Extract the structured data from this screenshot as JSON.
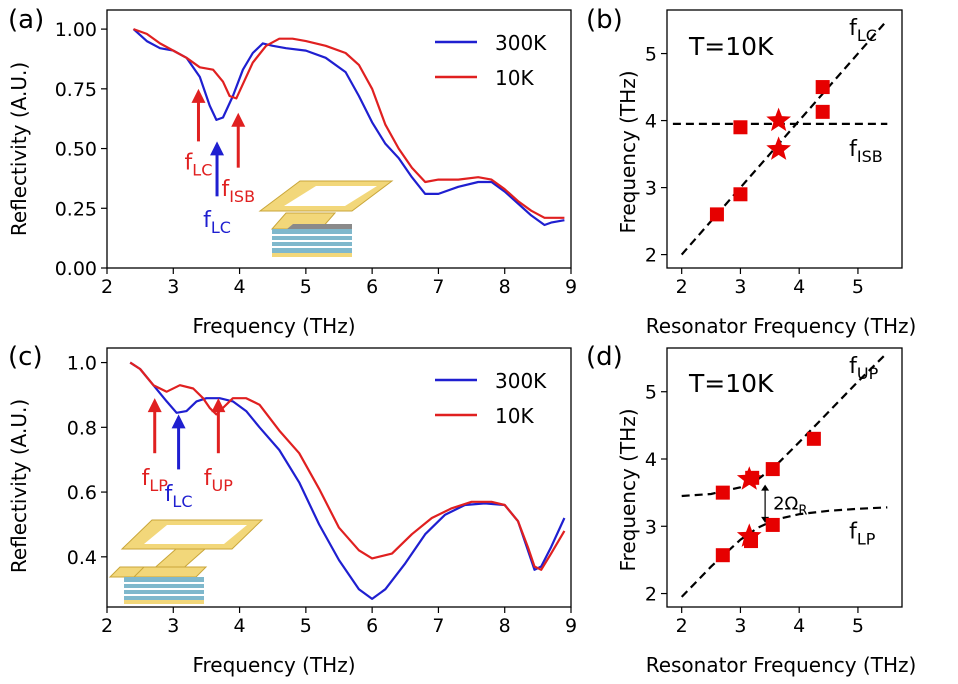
{
  "chart_data": [
    {
      "panel_label": "(a)",
      "type": "line",
      "xlabel": "Frequency (THz)",
      "ylabel": "Reflectivity (A.U.)",
      "xlim": [
        2,
        9
      ],
      "ylim": [
        0,
        1.08
      ],
      "xticks": [
        "2",
        "3",
        "4",
        "5",
        "6",
        "7",
        "8",
        "9"
      ],
      "yticks": [
        "0.00",
        "0.25",
        "0.50",
        "0.75",
        "1.00"
      ],
      "legend": "top-right",
      "series": [
        {
          "name": "300K",
          "color": "#1f1fd0",
          "points": [
            [
              2.4,
              1.0
            ],
            [
              2.6,
              0.95
            ],
            [
              2.8,
              0.92
            ],
            [
              3.0,
              0.91
            ],
            [
              3.2,
              0.88
            ],
            [
              3.4,
              0.8
            ],
            [
              3.55,
              0.68
            ],
            [
              3.65,
              0.62
            ],
            [
              3.75,
              0.63
            ],
            [
              3.9,
              0.72
            ],
            [
              4.05,
              0.83
            ],
            [
              4.2,
              0.9
            ],
            [
              4.35,
              0.94
            ],
            [
              4.5,
              0.93
            ],
            [
              4.7,
              0.92
            ],
            [
              5.0,
              0.91
            ],
            [
              5.3,
              0.88
            ],
            [
              5.6,
              0.82
            ],
            [
              5.8,
              0.72
            ],
            [
              6.0,
              0.61
            ],
            [
              6.2,
              0.52
            ],
            [
              6.4,
              0.46
            ],
            [
              6.6,
              0.38
            ],
            [
              6.8,
              0.31
            ],
            [
              7.0,
              0.31
            ],
            [
              7.3,
              0.34
            ],
            [
              7.6,
              0.36
            ],
            [
              7.8,
              0.36
            ],
            [
              8.0,
              0.32
            ],
            [
              8.2,
              0.27
            ],
            [
              8.4,
              0.22
            ],
            [
              8.6,
              0.18
            ],
            [
              8.7,
              0.19
            ],
            [
              8.9,
              0.2
            ]
          ]
        },
        {
          "name": "10K",
          "color": "#e02020",
          "points": [
            [
              2.4,
              1.0
            ],
            [
              2.6,
              0.98
            ],
            [
              2.8,
              0.94
            ],
            [
              3.0,
              0.91
            ],
            [
              3.2,
              0.88
            ],
            [
              3.4,
              0.84
            ],
            [
              3.6,
              0.83
            ],
            [
              3.75,
              0.78
            ],
            [
              3.85,
              0.72
            ],
            [
              3.95,
              0.71
            ],
            [
              4.05,
              0.77
            ],
            [
              4.2,
              0.86
            ],
            [
              4.4,
              0.93
            ],
            [
              4.6,
              0.96
            ],
            [
              4.8,
              0.96
            ],
            [
              5.0,
              0.95
            ],
            [
              5.3,
              0.93
            ],
            [
              5.6,
              0.9
            ],
            [
              5.8,
              0.85
            ],
            [
              6.0,
              0.75
            ],
            [
              6.2,
              0.6
            ],
            [
              6.4,
              0.5
            ],
            [
              6.6,
              0.42
            ],
            [
              6.8,
              0.36
            ],
            [
              7.0,
              0.37
            ],
            [
              7.3,
              0.37
            ],
            [
              7.6,
              0.38
            ],
            [
              7.8,
              0.37
            ],
            [
              8.0,
              0.33
            ],
            [
              8.2,
              0.28
            ],
            [
              8.4,
              0.24
            ],
            [
              8.6,
              0.21
            ],
            [
              8.8,
              0.21
            ],
            [
              8.9,
              0.21
            ]
          ]
        }
      ],
      "annotations": [
        {
          "main": "f",
          "sub": "LC",
          "color": "#e02020",
          "x": 3.38,
          "arrow_from": 0.53,
          "arrow_to": 0.75,
          "text_y": 0.47
        },
        {
          "main": "f",
          "sub": "LC",
          "color": "#1f1fd0",
          "x": 3.66,
          "arrow_from": 0.3,
          "arrow_to": 0.53,
          "text_y": 0.23
        },
        {
          "main": "f",
          "sub": "ISB",
          "color": "#e02020",
          "x": 3.98,
          "arrow_from": 0.42,
          "arrow_to": 0.65,
          "text_y": 0.36
        }
      ]
    },
    {
      "panel_label": "(b)",
      "type": "scatter",
      "xlabel": "Resonator Frequency (THz)",
      "ylabel": "Frequency (THz)",
      "xlim": [
        1.75,
        5.75
      ],
      "ylim": [
        1.8,
        5.65
      ],
      "xticks": [
        "2",
        "3",
        "4",
        "5"
      ],
      "yticks": [
        "2",
        "3",
        "4",
        "5"
      ],
      "inner_title": "T=10K",
      "squares": [
        [
          2.6,
          2.6
        ],
        [
          3.0,
          2.9
        ],
        [
          3.0,
          3.9
        ],
        [
          4.4,
          4.5
        ],
        [
          4.4,
          4.13
        ]
      ],
      "stars": [
        [
          3.65,
          3.57
        ],
        [
          3.65,
          4.0
        ]
      ],
      "lines": [
        {
          "points": [
            [
              2.0,
              2.0
            ],
            [
              5.5,
              5.5
            ]
          ]
        },
        {
          "points": [
            [
              1.85,
              3.95
            ],
            [
              5.5,
              3.95
            ]
          ]
        }
      ],
      "labels": [
        {
          "main": "f",
          "sub": "LC",
          "x": 4.85,
          "y": 5.28
        },
        {
          "main": "f",
          "sub": "ISB",
          "x": 4.85,
          "y": 3.47
        }
      ],
      "marker_color": "#e60000"
    },
    {
      "panel_label": "(c)",
      "type": "line",
      "xlabel": "Frequency (THz)",
      "ylabel": "Reflectivity (A.U.)",
      "xlim": [
        2,
        9
      ],
      "ylim": [
        0.245,
        1.045
      ],
      "xticks": [
        "2",
        "3",
        "4",
        "5",
        "6",
        "7",
        "8",
        "9"
      ],
      "yticks": [
        "0.4",
        "0.6",
        "0.8",
        "1.0"
      ],
      "legend": "top-right",
      "series": [
        {
          "name": "300K",
          "color": "#1f1fd0",
          "points": [
            [
              2.35,
              1.0
            ],
            [
              2.5,
              0.98
            ],
            [
              2.7,
              0.93
            ],
            [
              2.9,
              0.88
            ],
            [
              3.05,
              0.845
            ],
            [
              3.2,
              0.85
            ],
            [
              3.35,
              0.88
            ],
            [
              3.5,
              0.89
            ],
            [
              3.7,
              0.89
            ],
            [
              3.9,
              0.88
            ],
            [
              4.1,
              0.85
            ],
            [
              4.3,
              0.8
            ],
            [
              4.6,
              0.73
            ],
            [
              4.9,
              0.63
            ],
            [
              5.2,
              0.5
            ],
            [
              5.5,
              0.39
            ],
            [
              5.8,
              0.3
            ],
            [
              6.0,
              0.27
            ],
            [
              6.2,
              0.3
            ],
            [
              6.5,
              0.38
            ],
            [
              6.8,
              0.47
            ],
            [
              7.1,
              0.53
            ],
            [
              7.4,
              0.56
            ],
            [
              7.7,
              0.565
            ],
            [
              8.0,
              0.56
            ],
            [
              8.2,
              0.51
            ],
            [
              8.35,
              0.42
            ],
            [
              8.45,
              0.36
            ],
            [
              8.55,
              0.37
            ],
            [
              8.7,
              0.43
            ],
            [
              8.9,
              0.52
            ]
          ]
        },
        {
          "name": "10K",
          "color": "#e02020",
          "points": [
            [
              2.35,
              1.0
            ],
            [
              2.5,
              0.98
            ],
            [
              2.7,
              0.93
            ],
            [
              2.9,
              0.91
            ],
            [
              3.1,
              0.93
            ],
            [
              3.3,
              0.92
            ],
            [
              3.45,
              0.89
            ],
            [
              3.55,
              0.86
            ],
            [
              3.65,
              0.84
            ],
            [
              3.75,
              0.86
            ],
            [
              3.9,
              0.89
            ],
            [
              4.1,
              0.89
            ],
            [
              4.3,
              0.87
            ],
            [
              4.6,
              0.79
            ],
            [
              4.9,
              0.72
            ],
            [
              5.2,
              0.61
            ],
            [
              5.5,
              0.49
            ],
            [
              5.8,
              0.42
            ],
            [
              6.0,
              0.395
            ],
            [
              6.3,
              0.41
            ],
            [
              6.6,
              0.47
            ],
            [
              6.9,
              0.52
            ],
            [
              7.2,
              0.55
            ],
            [
              7.5,
              0.57
            ],
            [
              7.8,
              0.57
            ],
            [
              8.0,
              0.56
            ],
            [
              8.2,
              0.51
            ],
            [
              8.35,
              0.43
            ],
            [
              8.45,
              0.37
            ],
            [
              8.55,
              0.36
            ],
            [
              8.7,
              0.41
            ],
            [
              8.9,
              0.48
            ]
          ]
        }
      ],
      "annotations": [
        {
          "main": "f",
          "sub": "LP",
          "color": "#e02020",
          "x": 2.72,
          "arrow_from": 0.72,
          "arrow_to": 0.89,
          "text_y": 0.665
        },
        {
          "main": "f",
          "sub": "LC",
          "color": "#1f1fd0",
          "x": 3.08,
          "arrow_from": 0.67,
          "arrow_to": 0.84,
          "text_y": 0.615
        },
        {
          "main": "f",
          "sub": "UP",
          "color": "#e02020",
          "x": 3.68,
          "arrow_from": 0.72,
          "arrow_to": 0.89,
          "text_y": 0.665
        }
      ]
    },
    {
      "panel_label": "(d)",
      "type": "scatter",
      "xlabel": "Resonator Frequency (THz)",
      "ylabel": "Frequency (THz)",
      "xlim": [
        1.75,
        5.75
      ],
      "ylim": [
        1.8,
        5.65
      ],
      "xticks": [
        "2",
        "3",
        "4",
        "5"
      ],
      "yticks": [
        "2",
        "3",
        "4",
        "5"
      ],
      "inner_title": "T=10K",
      "squares": [
        [
          2.7,
          2.57
        ],
        [
          2.7,
          3.5
        ],
        [
          3.18,
          2.78
        ],
        [
          3.2,
          3.72
        ],
        [
          3.55,
          3.02
        ],
        [
          3.55,
          3.85
        ],
        [
          4.25,
          4.3
        ]
      ],
      "stars": [
        [
          3.15,
          2.85
        ],
        [
          3.15,
          3.7
        ]
      ],
      "lines": [
        {
          "points": [
            [
              2.0,
              3.45
            ],
            [
              2.5,
              3.48
            ],
            [
              3.0,
              3.58
            ],
            [
              3.3,
              3.7
            ],
            [
              3.6,
              3.9
            ],
            [
              4.0,
              4.25
            ],
            [
              4.5,
              4.7
            ],
            [
              5.0,
              5.15
            ],
            [
              5.5,
              5.58
            ]
          ]
        },
        {
          "points": [
            [
              2.0,
              1.95
            ],
            [
              2.5,
              2.4
            ],
            [
              3.0,
              2.8
            ],
            [
              3.3,
              2.98
            ],
            [
              3.6,
              3.1
            ],
            [
              4.0,
              3.18
            ],
            [
              4.5,
              3.23
            ],
            [
              5.0,
              3.26
            ],
            [
              5.5,
              3.28
            ]
          ]
        }
      ],
      "labels": [
        {
          "main": "f",
          "sub": "UP",
          "x": 4.85,
          "y": 5.28
        },
        {
          "main": "f",
          "sub": "LP",
          "x": 4.85,
          "y": 2.82
        }
      ],
      "splitting": {
        "main": "2Ω",
        "sub": "R",
        "x": 3.42,
        "y_from": 3.05,
        "y_to": 3.62
      },
      "marker_color": "#e60000"
    }
  ]
}
